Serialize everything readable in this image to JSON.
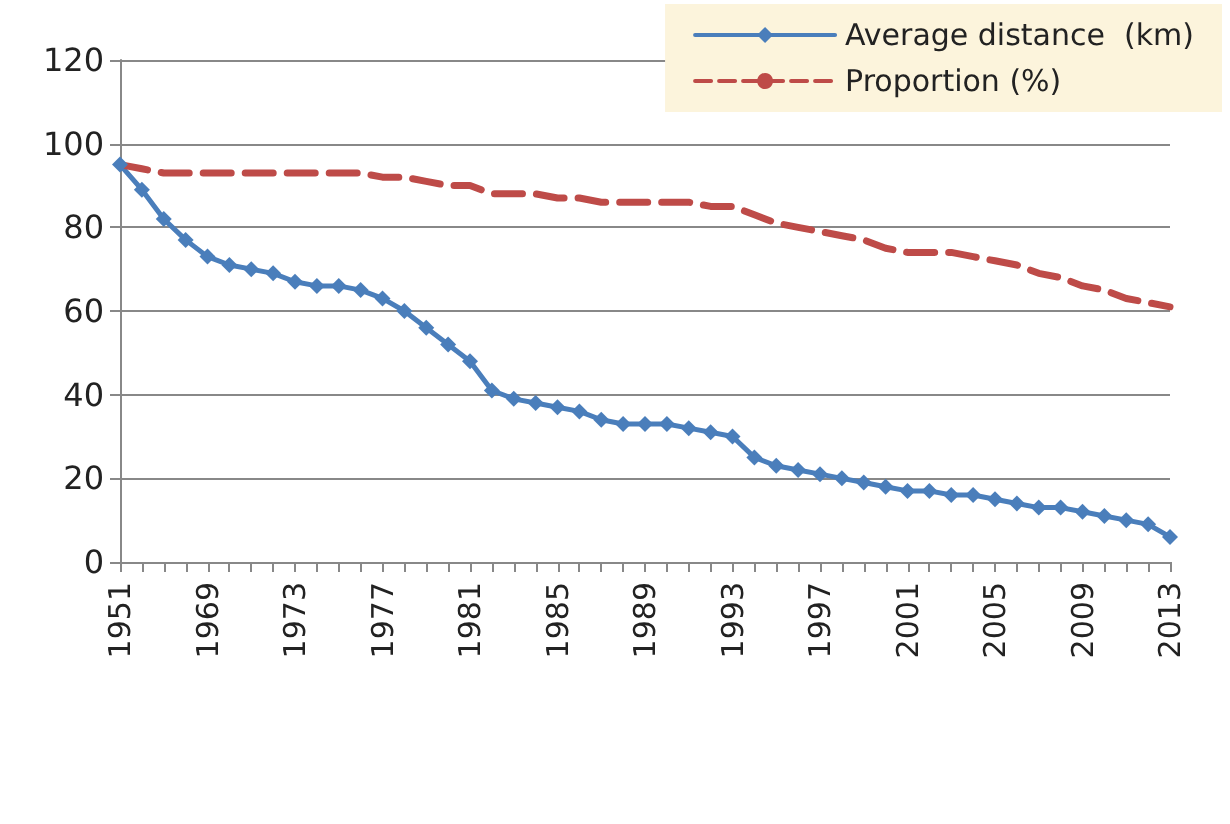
{
  "chart_data": {
    "type": "line",
    "categories": [
      "1951",
      null,
      null,
      null,
      "1969",
      null,
      null,
      null,
      "1973",
      null,
      null,
      null,
      "1977",
      null,
      null,
      null,
      "1981",
      null,
      null,
      null,
      "1985",
      null,
      null,
      null,
      "1989",
      null,
      null,
      null,
      "1993",
      null,
      null,
      null,
      "1997",
      null,
      null,
      null,
      "2001",
      null,
      null,
      null,
      "2005",
      null,
      null,
      null,
      "2009",
      null,
      null,
      null,
      "2013"
    ],
    "series": [
      {
        "name": "Average distance  (km)",
        "color": "#4a7ebb",
        "marker": "diamond",
        "line_style": "solid",
        "values": [
          95,
          89,
          82,
          77,
          73,
          71,
          70,
          69,
          67,
          66,
          66,
          65,
          63,
          60,
          56,
          52,
          48,
          41,
          39,
          38,
          37,
          36,
          34,
          33,
          33,
          33,
          32,
          31,
          30,
          25,
          23,
          22,
          21,
          20,
          19,
          18,
          17,
          17,
          16,
          16,
          15,
          14,
          13,
          13,
          12,
          11,
          10,
          9,
          6
        ]
      },
      {
        "name": "Proportion (%)",
        "color": "#be4b48",
        "marker": "none",
        "line_style": "dashed",
        "values": [
          95,
          94,
          93,
          93,
          93,
          93,
          93,
          93,
          93,
          93,
          93,
          93,
          92,
          92,
          91,
          90,
          90,
          88,
          88,
          88,
          87,
          87,
          86,
          86,
          86,
          86,
          86,
          85,
          85,
          83,
          81,
          80,
          79,
          78,
          77,
          75,
          74,
          74,
          74,
          73,
          72,
          71,
          69,
          68,
          66,
          65,
          63,
          62,
          61
        ]
      }
    ],
    "ylim": [
      0,
      120
    ],
    "yticks": [
      0,
      20,
      40,
      60,
      80,
      100,
      120
    ],
    "grid": "y",
    "legend": "top right"
  }
}
